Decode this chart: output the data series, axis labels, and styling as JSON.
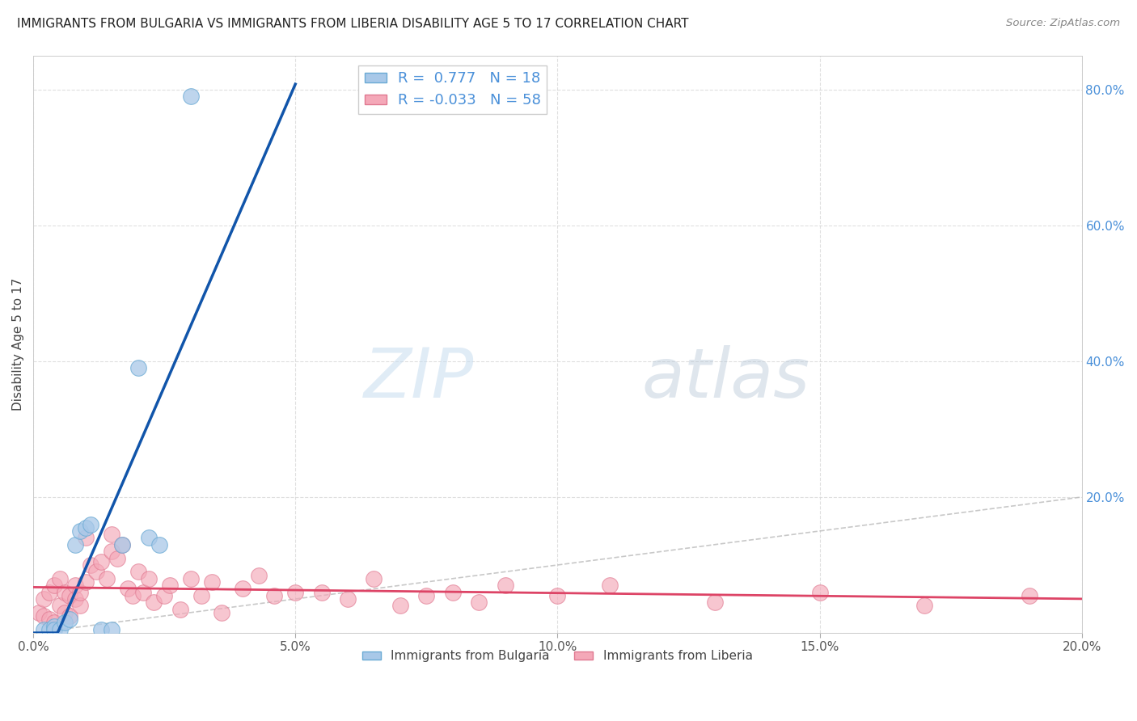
{
  "title": "IMMIGRANTS FROM BULGARIA VS IMMIGRANTS FROM LIBERIA DISABILITY AGE 5 TO 17 CORRELATION CHART",
  "source": "Source: ZipAtlas.com",
  "ylabel": "Disability Age 5 to 17",
  "xlim": [
    0.0,
    0.2
  ],
  "ylim": [
    0.0,
    0.85
  ],
  "xticks": [
    0.0,
    0.05,
    0.1,
    0.15,
    0.2
  ],
  "yticks": [
    0.0,
    0.2,
    0.4,
    0.6,
    0.8
  ],
  "xtick_labels": [
    "0.0%",
    "5.0%",
    "10.0%",
    "15.0%",
    "20.0%"
  ],
  "right_ytick_labels": [
    "",
    "20.0%",
    "40.0%",
    "60.0%",
    "80.0%"
  ],
  "bulgaria_color": "#a8c8e8",
  "liberia_color": "#f4a8b8",
  "bulgaria_edge": "#6aaad4",
  "liberia_edge": "#e07890",
  "trend_bulgaria_color": "#1155aa",
  "trend_liberia_color": "#dd4466",
  "diagonal_color": "#bbbbbb",
  "watermark_zip": "ZIP",
  "watermark_atlas": "atlas",
  "legend_R_bulgaria": "0.777",
  "legend_N_bulgaria": "18",
  "legend_R_liberia": "-0.033",
  "legend_N_liberia": "58",
  "legend_label_bulgaria": "Immigrants from Bulgaria",
  "legend_label_liberia": "Immigrants from Liberia",
  "bulgaria_x": [
    0.002,
    0.003,
    0.004,
    0.004,
    0.005,
    0.006,
    0.007,
    0.008,
    0.009,
    0.01,
    0.011,
    0.013,
    0.015,
    0.017,
    0.02,
    0.022,
    0.024,
    0.03
  ],
  "bulgaria_y": [
    0.005,
    0.005,
    0.01,
    0.005,
    0.005,
    0.015,
    0.02,
    0.13,
    0.15,
    0.155,
    0.16,
    0.005,
    0.005,
    0.13,
    0.39,
    0.14,
    0.13,
    0.79
  ],
  "liberia_x": [
    0.001,
    0.002,
    0.002,
    0.003,
    0.003,
    0.004,
    0.004,
    0.005,
    0.005,
    0.006,
    0.006,
    0.007,
    0.007,
    0.008,
    0.008,
    0.009,
    0.009,
    0.01,
    0.01,
    0.011,
    0.012,
    0.013,
    0.014,
    0.015,
    0.015,
    0.016,
    0.017,
    0.018,
    0.019,
    0.02,
    0.021,
    0.022,
    0.023,
    0.025,
    0.026,
    0.028,
    0.03,
    0.032,
    0.034,
    0.036,
    0.04,
    0.043,
    0.046,
    0.05,
    0.055,
    0.06,
    0.065,
    0.07,
    0.075,
    0.08,
    0.085,
    0.09,
    0.1,
    0.11,
    0.13,
    0.15,
    0.17,
    0.19
  ],
  "liberia_y": [
    0.03,
    0.025,
    0.05,
    0.02,
    0.06,
    0.015,
    0.07,
    0.04,
    0.08,
    0.03,
    0.06,
    0.025,
    0.055,
    0.05,
    0.07,
    0.04,
    0.06,
    0.075,
    0.14,
    0.1,
    0.09,
    0.105,
    0.08,
    0.12,
    0.145,
    0.11,
    0.13,
    0.065,
    0.055,
    0.09,
    0.06,
    0.08,
    0.045,
    0.055,
    0.07,
    0.035,
    0.08,
    0.055,
    0.075,
    0.03,
    0.065,
    0.085,
    0.055,
    0.06,
    0.06,
    0.05,
    0.08,
    0.04,
    0.055,
    0.06,
    0.045,
    0.07,
    0.055,
    0.07,
    0.045,
    0.06,
    0.04,
    0.055
  ]
}
